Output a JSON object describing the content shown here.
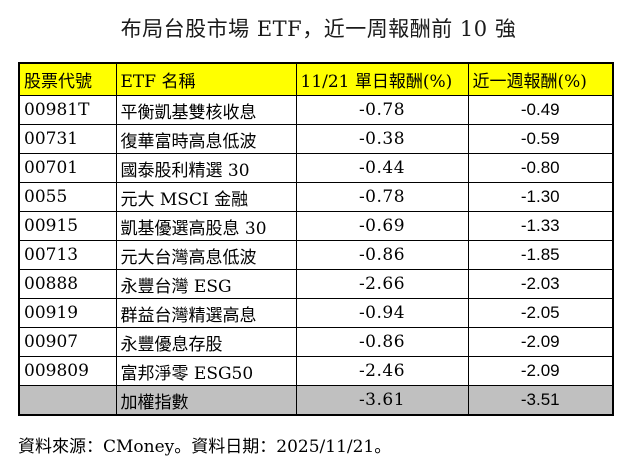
{
  "chart_data": {
    "type": "table",
    "title": "布局台股市場 ETF，近一周報酬前 10 強",
    "columns": [
      "股票代號",
      "ETF 名稱",
      "11/21 單日報酬(%)",
      "近一週報酬(%)"
    ],
    "rows": [
      {
        "code": "00981T",
        "name": "平衡凱基雙核收息",
        "day_return": "-0.78",
        "week_return": "-0.49"
      },
      {
        "code": "00731",
        "name": "復華富時高息低波",
        "day_return": "-0.38",
        "week_return": "-0.59"
      },
      {
        "code": "00701",
        "name": "國泰股利精選 30",
        "day_return": "-0.44",
        "week_return": "-0.80"
      },
      {
        "code": "0055",
        "name": "元大 MSCI 金融",
        "day_return": "-0.78",
        "week_return": "-1.30"
      },
      {
        "code": "00915",
        "name": "凱基優選高股息 30",
        "day_return": "-0.69",
        "week_return": "-1.33"
      },
      {
        "code": "00713",
        "name": "元大台灣高息低波",
        "day_return": "-0.86",
        "week_return": "-1.85"
      },
      {
        "code": "00888",
        "name": "永豐台灣 ESG",
        "day_return": "-2.66",
        "week_return": "-2.03"
      },
      {
        "code": "00919",
        "name": "群益台灣精選高息",
        "day_return": "-0.94",
        "week_return": "-2.05"
      },
      {
        "code": "00907",
        "name": "永豐優息存股",
        "day_return": "-0.86",
        "week_return": "-2.09"
      },
      {
        "code": "009809",
        "name": "富邦淨零 ESG50",
        "day_return": "-2.46",
        "week_return": "-2.09"
      }
    ],
    "summary_row": {
      "code": "",
      "name": "加權指數",
      "day_return": "-3.61",
      "week_return": "-3.51"
    },
    "footer": "資料來源：CMoney。資料日期：2025/11/21。"
  },
  "colors": {
    "background": "#FFFFFF",
    "text": "#000000",
    "border": "#000000",
    "header_bg": "#FFFF00",
    "summary_bg": "#C0C0C0"
  }
}
